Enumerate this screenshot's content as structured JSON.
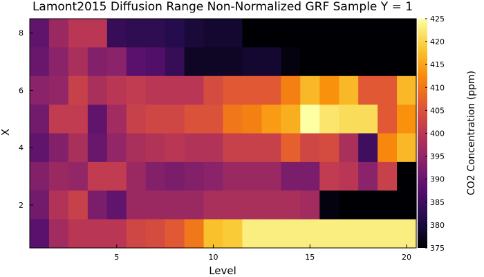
{
  "chart_data": {
    "type": "heatmap",
    "title": "Lamont2015 Diffusion Range Non-Normalized GRF Sample Y = 1",
    "xlabel": "Level",
    "ylabel": "X",
    "colorbar_label": "CO2 Concentration (ppm)",
    "x_range": [
      0.5,
      20.5
    ],
    "y_range": [
      0.5,
      8.5
    ],
    "x_ticks": [
      5,
      10,
      15,
      20
    ],
    "y_ticks": [
      2,
      4,
      6,
      8
    ],
    "clim": [
      375,
      425
    ],
    "colorbar_ticks": [
      375,
      380,
      385,
      390,
      395,
      400,
      405,
      410,
      415,
      420,
      425
    ],
    "colormap": "inferno",
    "grid": false,
    "rows_top_to_bottom_x": [
      8,
      7,
      6,
      5,
      4,
      3,
      2,
      1
    ],
    "values": [
      [
        389,
        396,
        400,
        400,
        384,
        383,
        383,
        382,
        380,
        379,
        379,
        375,
        375,
        375,
        375,
        375,
        375,
        375,
        375,
        375
      ],
      [
        390,
        394,
        398,
        393,
        394,
        388,
        387,
        384,
        378,
        378,
        378,
        379,
        379,
        376,
        375,
        375,
        375,
        375,
        375,
        375
      ],
      [
        394,
        395,
        402,
        398,
        400,
        401,
        400,
        400,
        400,
        404,
        406,
        406,
        406,
        411,
        417,
        413,
        417,
        406,
        406,
        417
      ],
      [
        391,
        401,
        401,
        389,
        397,
        402,
        403,
        403,
        405,
        405,
        410,
        411,
        414,
        416,
        425,
        422,
        421,
        421,
        406,
        413
      ],
      [
        389,
        393,
        398,
        390,
        395,
        398,
        399,
        400,
        399,
        399,
        402,
        402,
        402,
        407,
        403,
        404,
        398,
        385,
        412,
        417
      ],
      [
        393,
        396,
        395,
        401,
        401,
        396,
        393,
        392,
        393,
        394,
        396,
        396,
        396,
        392,
        392,
        401,
        400,
        394,
        402,
        375
      ],
      [
        391,
        399,
        402,
        392,
        389,
        396,
        396,
        396,
        396,
        398,
        398,
        398,
        398,
        398,
        397,
        376,
        375,
        375,
        375,
        375
      ],
      [
        388,
        397,
        400,
        400,
        400,
        403,
        404,
        406,
        410,
        418,
        419,
        423,
        423,
        423,
        423,
        423,
        423,
        423,
        423,
        423
      ]
    ]
  }
}
